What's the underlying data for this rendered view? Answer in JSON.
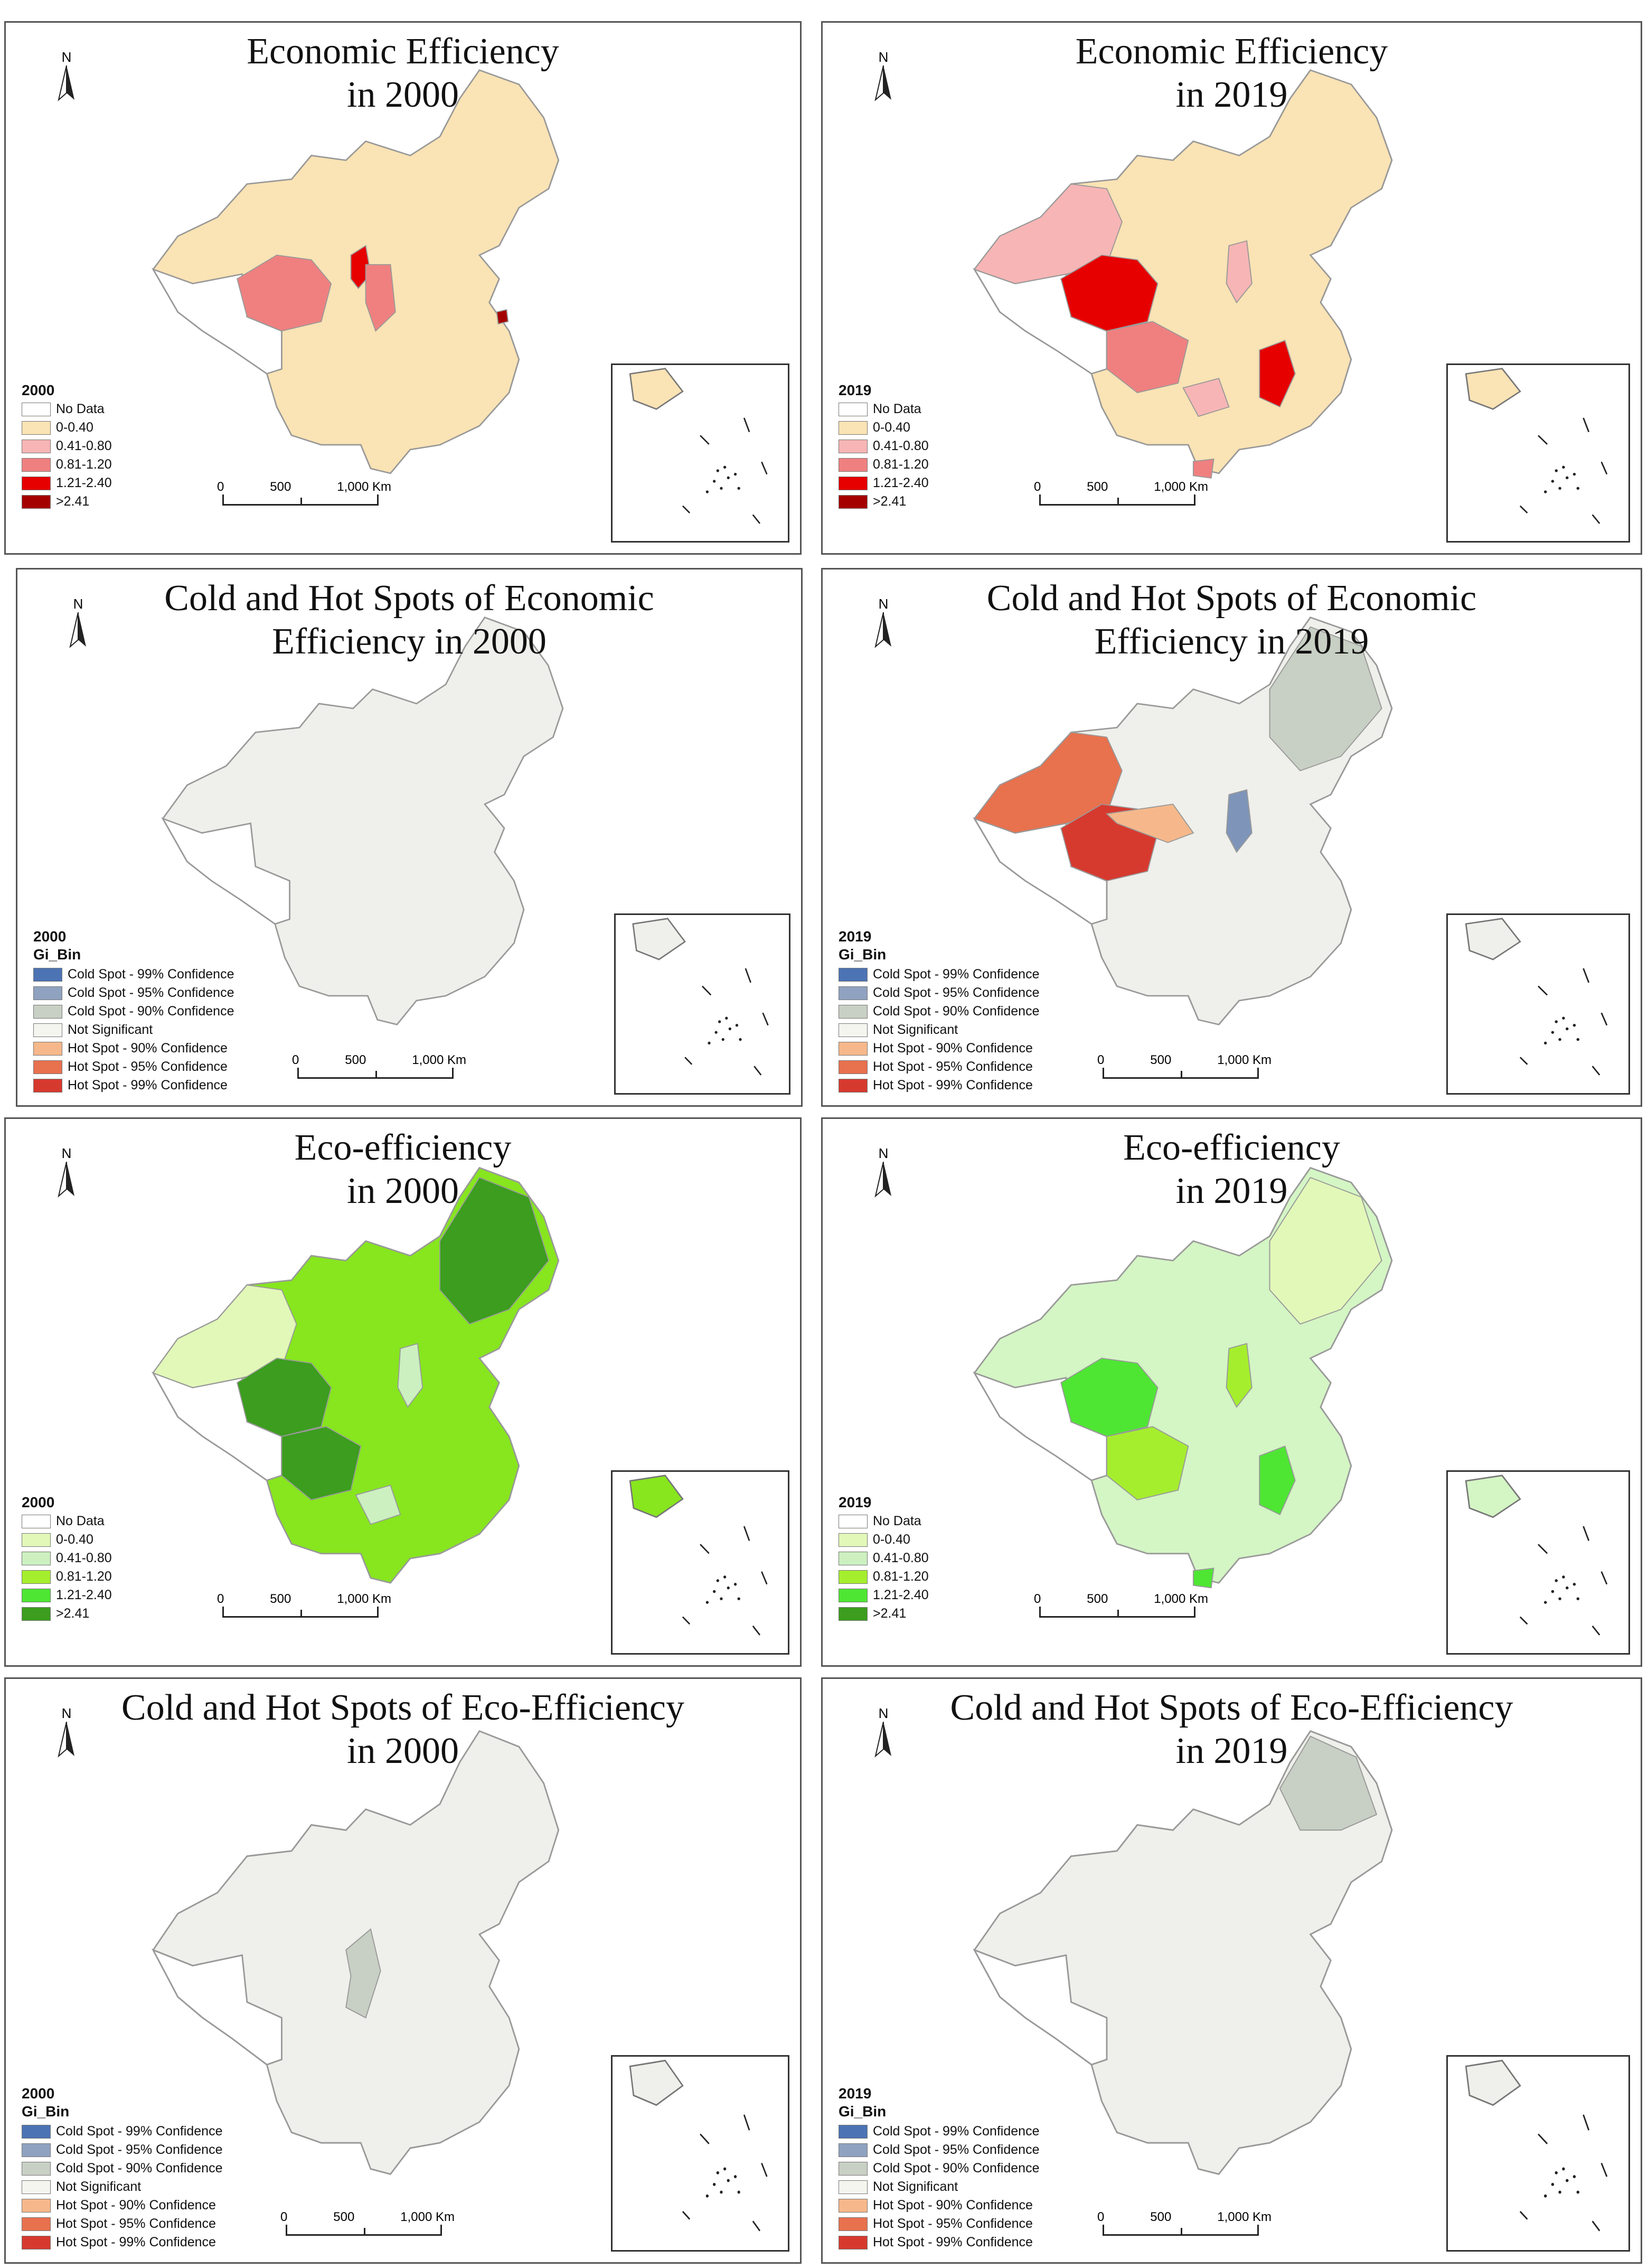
{
  "panels": [
    {
      "title_line1": "Economic Efficiency",
      "title_line2": "in 2000",
      "year": "2000",
      "legend_type": "efficiency",
      "north": "N",
      "fill": "#fae3b4",
      "patches": [
        {
          "color": "#f08080",
          "shape": "qinghai"
        },
        {
          "color": "#e60000",
          "shape": "ningxia"
        },
        {
          "color": "#f08080",
          "shape": "shaanxi"
        },
        {
          "color": "#a50000",
          "shape": "shanghai"
        }
      ]
    },
    {
      "title_line1": "Economic Efficiency",
      "title_line2": "in 2019",
      "year": "2019",
      "legend_type": "efficiency",
      "north": "N",
      "fill": "#fae3b4",
      "patches": [
        {
          "color": "#f7b5b5",
          "shape": "xinjiang"
        },
        {
          "color": "#e60000",
          "shape": "qinghai"
        },
        {
          "color": "#f08080",
          "shape": "sichuan"
        },
        {
          "color": "#e60000",
          "shape": "jiangxi"
        },
        {
          "color": "#f7b5b5",
          "shape": "guizhou"
        },
        {
          "color": "#f08080",
          "shape": "hainan"
        },
        {
          "color": "#f7b5b5",
          "shape": "shanxi"
        }
      ]
    },
    {
      "title_line1": "Cold and Hot Spots of Economic",
      "title_line2": "Efficiency in 2000",
      "year": "2000",
      "legend_type": "gi",
      "north": "N",
      "fill": "#efefeb",
      "patches": []
    },
    {
      "title_line1": "Cold and Hot Spots of Economic",
      "title_line2": "Efficiency in 2019",
      "year": "2019",
      "legend_type": "gi",
      "north": "N",
      "fill": "#efefeb",
      "patches": [
        {
          "color": "#e8714e",
          "shape": "xinjiang"
        },
        {
          "color": "#d63a2f",
          "shape": "qinghai"
        },
        {
          "color": "#f6b88a",
          "shape": "gansu"
        },
        {
          "color": "#7e95b9",
          "shape": "shanxi"
        },
        {
          "color": "#c8cfc4",
          "shape": "northeast"
        }
      ]
    },
    {
      "title_line1": "Eco-efficiency",
      "title_line2": "in 2000",
      "year": "2000",
      "legend_type": "efficiency_green",
      "north": "N",
      "fill": "#87e61e",
      "patches": [
        {
          "color": "#e2f8b8",
          "shape": "xinjiang"
        },
        {
          "color": "#3c9d1e",
          "shape": "qinghai"
        },
        {
          "color": "#3c9d1e",
          "shape": "sichuan"
        },
        {
          "color": "#ccf0c0",
          "shape": "shanxi"
        },
        {
          "color": "#3c9d1e",
          "shape": "northeast"
        },
        {
          "color": "#ccf0c0",
          "shape": "guizhou"
        }
      ]
    },
    {
      "title_line1": "Eco-efficiency",
      "title_line2": "in 2019",
      "year": "2019",
      "legend_type": "efficiency_green",
      "north": "N",
      "fill": "#d4f5c4",
      "patches": [
        {
          "color": "#4ee633",
          "shape": "qinghai"
        },
        {
          "color": "#a5ee2e",
          "shape": "sichuan"
        },
        {
          "color": "#4ee633",
          "shape": "jiangxi"
        },
        {
          "color": "#4ee633",
          "shape": "hainan"
        },
        {
          "color": "#e2f8b8",
          "shape": "northeast"
        },
        {
          "color": "#a5ee2e",
          "shape": "shanxi"
        }
      ]
    },
    {
      "title_line1": "Cold and Hot Spots of Eco-Efficiency",
      "title_line2": "in 2000",
      "year": "2000",
      "legend_type": "gi",
      "north": "N",
      "fill": "#efefeb",
      "patches": [
        {
          "color": "#c8cfc4",
          "shape": "ningxia_big"
        }
      ]
    },
    {
      "title_line1": "Cold and Hot Spots of Eco-Efficiency",
      "title_line2": "in 2019",
      "year": "2019",
      "legend_type": "gi",
      "north": "N",
      "fill": "#efefeb",
      "patches": [
        {
          "color": "#c8cfc4",
          "shape": "heilongjiang"
        }
      ]
    }
  ],
  "legends": {
    "efficiency": [
      {
        "label": "No Data",
        "color": "#ffffff"
      },
      {
        "label": "0-0.40",
        "color": "#fae3b4"
      },
      {
        "label": "0.41-0.80",
        "color": "#f7b5b5"
      },
      {
        "label": "0.81-1.20",
        "color": "#f08080"
      },
      {
        "label": "1.21-2.40",
        "color": "#e60000"
      },
      {
        "label": ">2.41",
        "color": "#a50000"
      }
    ],
    "efficiency_green": [
      {
        "label": "No Data",
        "color": "#ffffff"
      },
      {
        "label": "0-0.40",
        "color": "#e2f8b8"
      },
      {
        "label": "0.41-0.80",
        "color": "#ccf0c0"
      },
      {
        "label": "0.81-1.20",
        "color": "#a5ee2e"
      },
      {
        "label": "1.21-2.40",
        "color": "#4ee633"
      },
      {
        "label": ">2.41",
        "color": "#3c9d1e"
      }
    ],
    "gi_title": "Gi_Bin",
    "gi": [
      {
        "label": "Cold Spot - 99% Confidence",
        "color": "#4c73b4"
      },
      {
        "label": "Cold Spot - 95% Confidence",
        "color": "#8fa2bf"
      },
      {
        "label": "Cold Spot - 90% Confidence",
        "color": "#c8cfc4"
      },
      {
        "label": "Not Significant",
        "color": "#f5f5f0"
      },
      {
        "label": "Hot Spot - 90% Confidence",
        "color": "#f6b88a"
      },
      {
        "label": "Hot Spot - 95% Confidence",
        "color": "#e8714e"
      },
      {
        "label": "Hot Spot - 99% Confidence",
        "color": "#d63a2f"
      }
    ]
  },
  "scale_bar": {
    "zero": "0",
    "mid": "500",
    "end": "1,000 Km"
  }
}
